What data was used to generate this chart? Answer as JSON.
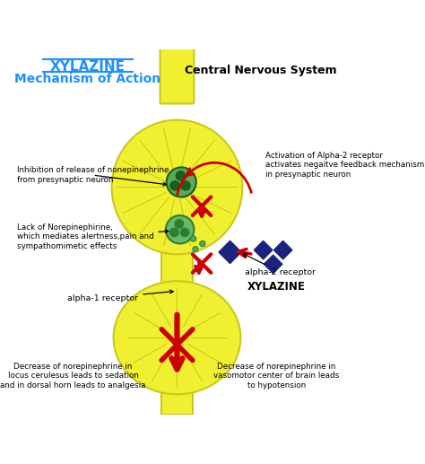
{
  "title_line1": "XYLAZINE",
  "title_line2": "Mechanism of Action",
  "subtitle": "Central Nervous System",
  "bg_color": "#ffffff",
  "neuron_color": "#f0f030",
  "neuron_edge_color": "#c8c820",
  "text_color": "#000000",
  "title_color": "#1e90ff",
  "arrow_red": "#cc0000",
  "xylazine_color": "#1a237e",
  "vesicle_outer1": "#5aaa5a",
  "vesicle_inner1": "#1b5e20",
  "vesicle_outer2": "#66bb6a",
  "vesicle_inner2": "#2e7d32",
  "dot_color": "#4caf50",
  "label_inhibition": "Inhibition of release of nonepinephrine\nfrom presynaptic neuron",
  "label_lack": "Lack of Norepinephirine,\nwhich mediates alertness,pain and\nsympathomimetic effects",
  "label_alpha1": "alpha-1 receptor",
  "label_alpha2": "alpha-2 receptor",
  "label_activation": "Activation of Alpha-2 receptor\nactivates negaitve feedback mechanism\nin presynaptic neuron",
  "label_decrease_left": "Decrease of norepinephrine in\nlocus cerulesus leads to sedation\nand in dorsal horn leads to analgesia",
  "label_decrease_right": "Decrease of norepinephrine in\nvasomotor center of brain leads\nto hypotension",
  "label_xylazine": "XYLAZINE"
}
